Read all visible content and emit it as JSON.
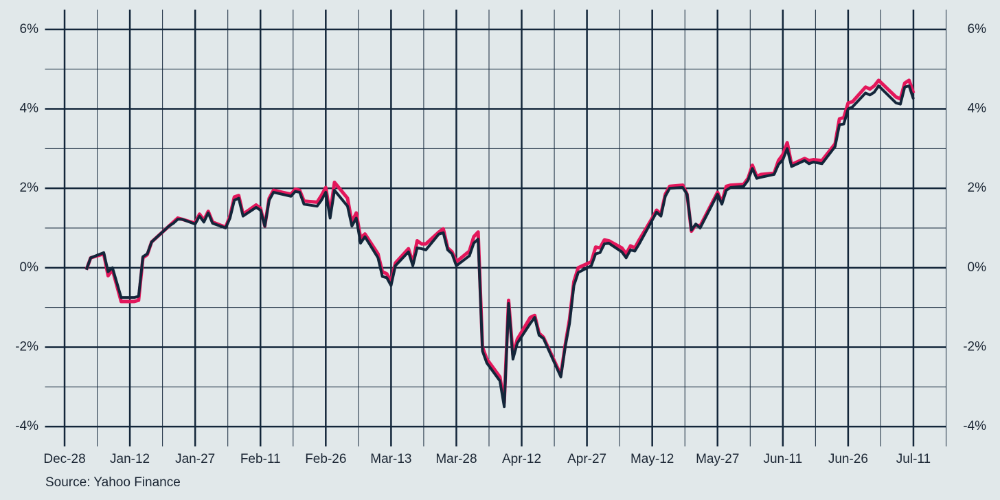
{
  "chart_data": {
    "type": "line",
    "source": "Source: Yahoo Finance",
    "x": [
      5,
      6,
      9,
      10,
      11,
      13,
      16,
      17,
      18,
      19,
      20,
      24,
      25,
      26,
      27,
      30,
      31,
      32,
      33,
      34,
      37,
      38,
      39,
      40,
      41,
      44,
      45,
      46,
      47,
      48,
      52,
      53,
      54,
      55,
      58,
      59,
      60,
      61,
      62,
      65,
      66,
      67,
      68,
      69,
      72,
      73,
      74,
      75,
      76,
      79,
      80,
      81,
      82,
      83,
      86,
      87,
      88,
      89,
      90,
      93,
      94,
      95,
      96,
      97,
      100,
      101,
      102,
      103,
      104,
      107,
      108,
      109,
      110,
      114,
      115,
      116,
      117,
      118,
      121,
      122,
      123,
      124,
      125,
      128,
      129,
      130,
      131,
      132,
      135,
      136,
      137,
      138,
      139,
      142,
      143,
      144,
      145,
      146,
      150,
      151,
      152,
      153,
      156,
      157,
      158,
      159,
      160,
      163,
      164,
      165,
      166,
      167,
      170,
      171,
      172,
      174,
      177,
      178,
      179,
      180,
      181,
      184,
      185,
      186,
      187,
      191,
      192,
      193,
      194,
      195
    ],
    "series": [
      {
        "color": "#e3175b",
        "values": [
          -0.05,
          0.25,
          0.35,
          -0.2,
          -0.05,
          -0.85,
          -0.85,
          -0.82,
          0.25,
          0.33,
          0.65,
          1.05,
          1.15,
          1.25,
          1.22,
          1.12,
          1.35,
          1.2,
          1.42,
          1.15,
          1.02,
          1.3,
          1.78,
          1.82,
          1.35,
          1.58,
          1.5,
          1.05,
          1.75,
          1.95,
          1.85,
          1.98,
          1.95,
          1.68,
          1.65,
          1.82,
          2.02,
          1.35,
          2.15,
          1.75,
          1.15,
          1.38,
          0.75,
          0.85,
          0.35,
          -0.1,
          -0.15,
          -0.35,
          0.12,
          0.48,
          0.12,
          0.68,
          0.6,
          0.6,
          0.9,
          0.98,
          0.5,
          0.4,
          0.15,
          0.42,
          0.78,
          0.9,
          -2.0,
          -2.3,
          -2.75,
          -3.4,
          -0.82,
          -2.2,
          -1.8,
          -1.25,
          -1.2,
          -1.65,
          -1.75,
          -2.7,
          -1.95,
          -1.3,
          -0.35,
          0.0,
          0.15,
          0.52,
          0.5,
          0.7,
          0.68,
          0.5,
          0.35,
          0.55,
          0.5,
          0.7,
          1.25,
          1.45,
          1.35,
          1.85,
          2.05,
          2.08,
          1.85,
          0.92,
          1.08,
          1.05,
          1.9,
          1.65,
          2.05,
          2.08,
          2.1,
          2.25,
          2.58,
          2.3,
          2.35,
          2.38,
          2.7,
          2.85,
          3.15,
          2.6,
          2.75,
          2.7,
          2.72,
          2.7,
          3.12,
          3.75,
          3.78,
          4.15,
          4.18,
          4.55,
          4.5,
          4.58,
          4.72,
          4.3,
          4.25,
          4.65,
          4.72,
          4.4
        ]
      },
      {
        "color": "#13263a",
        "values": [
          -0.05,
          0.25,
          0.38,
          -0.1,
          0.0,
          -0.75,
          -0.75,
          -0.72,
          0.28,
          0.35,
          0.65,
          1.05,
          1.12,
          1.22,
          1.22,
          1.1,
          1.3,
          1.15,
          1.38,
          1.12,
          1.0,
          1.25,
          1.7,
          1.75,
          1.3,
          1.52,
          1.45,
          1.05,
          1.7,
          1.9,
          1.8,
          1.92,
          1.9,
          1.6,
          1.55,
          1.7,
          1.9,
          1.25,
          1.95,
          1.55,
          1.05,
          1.25,
          0.62,
          0.78,
          0.25,
          -0.22,
          -0.25,
          -0.45,
          0.05,
          0.4,
          0.05,
          0.5,
          0.48,
          0.45,
          0.85,
          0.88,
          0.45,
          0.35,
          0.05,
          0.3,
          0.62,
          0.72,
          -2.1,
          -2.4,
          -2.85,
          -3.5,
          -0.9,
          -2.3,
          -1.9,
          -1.4,
          -1.25,
          -1.7,
          -1.78,
          -2.75,
          -2.0,
          -1.4,
          -0.45,
          -0.12,
          0.05,
          0.35,
          0.38,
          0.6,
          0.62,
          0.4,
          0.25,
          0.45,
          0.42,
          0.6,
          1.2,
          1.4,
          1.3,
          1.8,
          2.0,
          2.02,
          1.85,
          0.95,
          1.1,
          1.0,
          1.85,
          1.6,
          1.95,
          2.02,
          2.05,
          2.2,
          2.5,
          2.25,
          2.28,
          2.35,
          2.6,
          2.72,
          3.0,
          2.55,
          2.7,
          2.62,
          2.66,
          2.62,
          3.05,
          3.6,
          3.62,
          4.0,
          4.05,
          4.4,
          4.35,
          4.42,
          4.58,
          4.15,
          4.12,
          4.55,
          4.58,
          4.25
        ]
      }
    ],
    "xlim": [
      -4.5,
      202.5
    ],
    "xticks": [
      {
        "value": 0,
        "label": "Dec-28"
      },
      {
        "value": 15,
        "label": "Jan-12"
      },
      {
        "value": 30,
        "label": "Jan-27"
      },
      {
        "value": 45,
        "label": "Feb-11"
      },
      {
        "value": 60,
        "label": "Feb-26"
      },
      {
        "value": 75,
        "label": "Mar-13"
      },
      {
        "value": 90,
        "label": "Mar-28"
      },
      {
        "value": 105,
        "label": "Apr-12"
      },
      {
        "value": 120,
        "label": "Apr-27"
      },
      {
        "value": 135,
        "label": "May-12"
      },
      {
        "value": 150,
        "label": "May-27"
      },
      {
        "value": 165,
        "label": "Jun-11"
      },
      {
        "value": 180,
        "label": "Jun-26"
      },
      {
        "value": 195,
        "label": "Jul-11"
      }
    ],
    "xminorticks": [
      7.5,
      22.5,
      37.5,
      52.5,
      67.5,
      82.5,
      97.5,
      112.5,
      127.5,
      142.5,
      157.5,
      172.5,
      187.5,
      202.5
    ],
    "ylim": [
      -4.5,
      6.5
    ],
    "yticks": [
      {
        "value": -4,
        "label": "-4%"
      },
      {
        "value": -2,
        "label": "-2%"
      },
      {
        "value": 0,
        "label": "0%"
      },
      {
        "value": 2,
        "label": "2%"
      },
      {
        "value": 4,
        "label": "4%"
      },
      {
        "value": 6,
        "label": "6%"
      }
    ],
    "yminorticks": [
      -3,
      -1,
      1,
      3,
      5
    ],
    "grid": true,
    "grid_color": "#13263a"
  }
}
